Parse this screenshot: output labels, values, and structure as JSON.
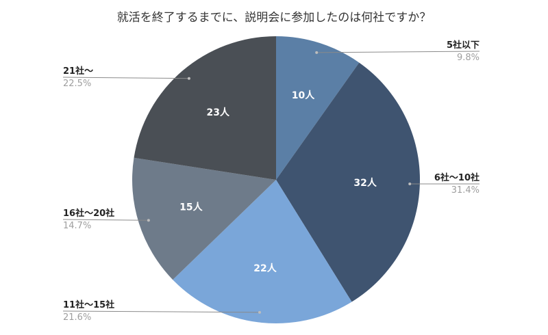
{
  "chart_data": {
    "type": "pie",
    "title": "就活を終了するまでに、説明会に参加したのは何社ですか？",
    "unit": "人",
    "slices": [
      {
        "label": "5社以下",
        "value": 10,
        "value_label": "10人",
        "percent_label": "9.8%",
        "color": "#5b7fa6"
      },
      {
        "label": "6社〜10社",
        "value": 32,
        "value_label": "32人",
        "percent_label": "31.4%",
        "color": "#3f5470"
      },
      {
        "label": "11社〜15社",
        "value": 22,
        "value_label": "22人",
        "percent_label": "21.6%",
        "color": "#7aa6d9"
      },
      {
        "label": "16社〜20社",
        "value": 15,
        "value_label": "15人",
        "percent_label": "14.7%",
        "color": "#6e7b8a"
      },
      {
        "label": "21社〜",
        "value": 23,
        "value_label": "23人",
        "percent_label": "22.5%",
        "color": "#4a4f55"
      }
    ],
    "start_angle_deg": 0,
    "direction": "clockwise",
    "legend": "outside-with-leader-lines"
  }
}
